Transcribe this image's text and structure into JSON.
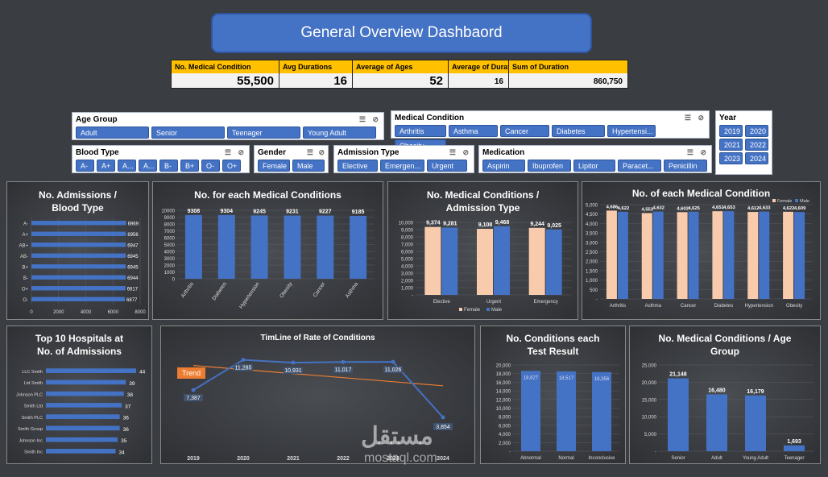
{
  "title": "General Overview Dashbaord",
  "kpis": [
    {
      "label": "No. Medical Condition",
      "value": "55,500",
      "width": 134
    },
    {
      "label": "Avg Durations",
      "value": "16",
      "width": 91
    },
    {
      "label": "Average of Ages",
      "value": "52",
      "width": 119
    },
    {
      "label": "Average of Duratio",
      "value": "16",
      "width": 75,
      "small": true
    },
    {
      "label": "Sum of Duration",
      "value": "860,750",
      "width": 147,
      "small": true
    }
  ],
  "slicers": {
    "age_group": {
      "title": "Age Group",
      "items": [
        "Adult",
        "Senior",
        "Teenager",
        "Young Adult"
      ]
    },
    "medical_condition": {
      "title": "Medical Condition",
      "items": [
        "Arthritis",
        "Asthma",
        "Cancer",
        "Diabetes",
        "Hypertensi...",
        "Obesity"
      ]
    },
    "year": {
      "title": "Year",
      "items": [
        "2019",
        "2020",
        "2021",
        "2022",
        "2023",
        "2024"
      ]
    },
    "blood_type": {
      "title": "Blood Type",
      "items": [
        "A-",
        "A+",
        "A...",
        "A...",
        "B-",
        "B+",
        "O-",
        "O+"
      ]
    },
    "gender": {
      "title": "Gender",
      "items": [
        "Female",
        "Male"
      ]
    },
    "admission_type": {
      "title": "Admission Type",
      "items": [
        "Elective",
        "Emergen...",
        "Urgent"
      ]
    },
    "medication": {
      "title": "Medication",
      "items": [
        "Aspirin",
        "Ibuprofen",
        "Lipitor",
        "Paracet...",
        "Penicillin"
      ]
    }
  },
  "colors": {
    "blue": "#4472c4",
    "peach": "#f8cbad",
    "orange": "#ed7d31",
    "gold": "#ffc000"
  },
  "chart_data": [
    {
      "id": "blood",
      "type": "bar",
      "orientation": "horizontal",
      "title_lines": [
        "No. Admissions /",
        "Blood Type"
      ],
      "categories": [
        "A-",
        "A+",
        "AB+",
        "AB-",
        "B+",
        "B-",
        "O+",
        "O-"
      ],
      "values": [
        6969,
        6956,
        6947,
        6945,
        6945,
        6944,
        6917,
        6877
      ],
      "xlim": [
        0,
        8000
      ],
      "xticks": [
        0,
        2000,
        4000,
        6000,
        8000
      ]
    },
    {
      "id": "cond",
      "type": "bar",
      "title_lines": [
        "No. for each Medical Conditions"
      ],
      "categories": [
        "Arthritis",
        "Diabetes",
        "Hypertension",
        "Obesity",
        "Cancer",
        "Asthma"
      ],
      "values": [
        9308,
        9304,
        9245,
        9231,
        9227,
        9185
      ],
      "ylim": [
        0,
        10000
      ],
      "yticks": [
        0,
        1000,
        2000,
        3000,
        4000,
        5000,
        6000,
        7000,
        8000,
        9000,
        10000
      ]
    },
    {
      "id": "adm",
      "type": "bar",
      "title_lines": [
        "No. Medical Conditions /",
        "Admission Type"
      ],
      "categories": [
        "Elective",
        "Urgent",
        "Emergency"
      ],
      "series": [
        {
          "name": "Female",
          "values": [
            9374,
            9108,
            9244
          ]
        },
        {
          "name": "Male",
          "values": [
            9281,
            9468,
            9025
          ]
        }
      ],
      "value_labels": [
        [
          "9,374",
          "9,108",
          "9,244"
        ],
        [
          "9,281",
          "9,468",
          "9,025"
        ]
      ],
      "ylim": [
        0,
        10000
      ],
      "yticks": [
        0,
        1000,
        2000,
        3000,
        4000,
        5000,
        6000,
        7000,
        8000,
        9000,
        10000
      ],
      "ytick_labels": [
        "-",
        "1,000",
        "2,000",
        "3,000",
        "4,000",
        "5,000",
        "6,000",
        "7,000",
        "8,000",
        "9,000",
        "10,000"
      ],
      "legend": "bottom"
    },
    {
      "id": "gender",
      "type": "bar",
      "title_lines": [
        "No. of each Medical Condition"
      ],
      "categories": [
        "Arthritis",
        "Asthma",
        "Cancer",
        "Diabetes",
        "Hypertension",
        "Obesity"
      ],
      "series": [
        {
          "name": "Female",
          "values": [
            4686,
            4553,
            4602,
            4651,
            4612,
            4622
          ]
        },
        {
          "name": "Male",
          "values": [
            4622,
            4632,
            4625,
            4653,
            4633,
            4609
          ]
        }
      ],
      "value_labels": [
        [
          "4,686",
          "4,553",
          "4,602",
          "4,651",
          "4,612",
          "4,622"
        ],
        [
          "4,622",
          "4,632",
          "4,625",
          "4,653",
          "4,633",
          "4,609"
        ]
      ],
      "ylim": [
        0,
        5000
      ],
      "yticks": [
        0,
        500,
        1000,
        1500,
        2000,
        2500,
        3000,
        3500,
        4000,
        4500,
        5000
      ],
      "ytick_labels": [
        "-",
        "500",
        "1,000",
        "1,500",
        "2,000",
        "2,500",
        "3,000",
        "3,500",
        "4,000",
        "4,500",
        "5,000"
      ],
      "legend": "top-right"
    },
    {
      "id": "hosp",
      "type": "bar",
      "orientation": "horizontal",
      "title_lines": [
        "Top 10 Hospitals at",
        "No. of Admissions"
      ],
      "categories": [
        "LLC Smith",
        "Ltd Smith",
        "Johnson PLC",
        "Smith Ltd",
        "Smith PLC",
        "Smith Group",
        "Johnson Inc",
        "Smith Inc"
      ],
      "values": [
        44,
        39,
        38,
        37,
        36,
        36,
        35,
        34
      ],
      "xlim": [
        0,
        44
      ]
    },
    {
      "id": "time",
      "type": "line",
      "title_lines": [
        "TimLine of Rate of Conditions"
      ],
      "x": [
        "2019",
        "2020",
        "2021",
        "2022",
        "2023",
        "2024"
      ],
      "values": [
        7387,
        11285,
        10931,
        11017,
        11026,
        3854
      ],
      "value_labels": [
        "7,387",
        "11,285",
        "10,931",
        "11,017",
        "11,026",
        "3,854"
      ],
      "trend_label": "Trend",
      "ylim": [
        0,
        12500
      ]
    },
    {
      "id": "test",
      "type": "bar",
      "title_lines": [
        "No. Conditions each",
        "Test Result"
      ],
      "categories": [
        "Abnormal",
        "Normal",
        "Inconclusive"
      ],
      "values": [
        18627,
        18517,
        18356
      ],
      "value_labels": [
        "18,627",
        "18,517",
        "18,356"
      ],
      "ylim": [
        0,
        20000
      ],
      "yticks": [
        0,
        2000,
        4000,
        6000,
        8000,
        10000,
        12000,
        14000,
        16000,
        18000,
        20000
      ],
      "ytick_labels": [
        "-",
        "2,000",
        "4,000",
        "6,000",
        "8,000",
        "10,000",
        "12,000",
        "14,000",
        "16,000",
        "18,000",
        "20,000"
      ]
    },
    {
      "id": "age",
      "type": "bar",
      "title_lines": [
        "No. Medical Conditions / Age",
        "Group"
      ],
      "categories": [
        "Senior",
        "Adult",
        "Young Adult",
        "Teenager"
      ],
      "values": [
        21148,
        16480,
        16179,
        1693
      ],
      "value_labels": [
        "21,148",
        "16,480",
        "16,179",
        "1,693"
      ],
      "ylim": [
        0,
        25000
      ],
      "yticks": [
        0,
        5000,
        10000,
        15000,
        20000,
        25000
      ],
      "ytick_labels": [
        "-",
        "5,000",
        "10,000",
        "15,000",
        "20,000",
        "25,000"
      ]
    }
  ],
  "watermark": {
    "arabic": "مستقل",
    "latin": "mostaql.com"
  }
}
